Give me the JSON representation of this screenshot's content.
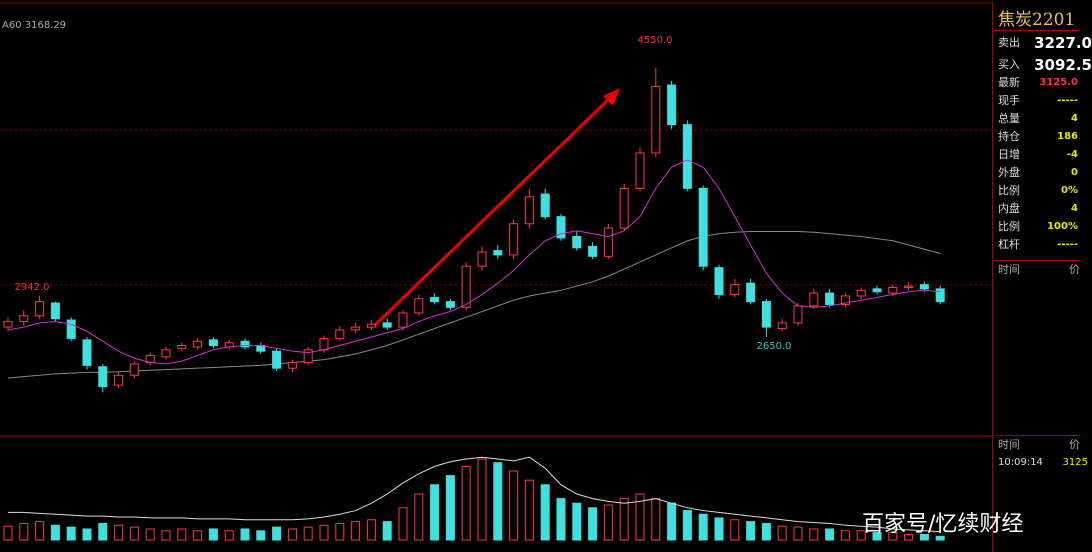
{
  "chart_data": {
    "type": "candlestick",
    "ma_label": "A60 3168.29",
    "annotations": [
      "4550.0",
      "2942.0",
      "2650.0"
    ],
    "ylim": [
      1958,
      4995
    ],
    "open": [
      2720,
      2760,
      2800,
      2890,
      2770,
      2630,
      2440,
      2310,
      2380,
      2470,
      2510,
      2570,
      2580,
      2630,
      2580,
      2620,
      2590,
      2550,
      2430,
      2470,
      2560,
      2640,
      2700,
      2720,
      2750,
      2720,
      2820,
      2930,
      2900,
      2860,
      3150,
      3260,
      3230,
      3450,
      3660,
      3500,
      3360,
      3290,
      3220,
      3420,
      3700,
      3950,
      4430,
      4150,
      3700,
      3140,
      2950,
      3030,
      2900,
      2710,
      2750,
      2870,
      2960,
      2880,
      2940,
      2990,
      2960,
      3000,
      3020,
      2990
    ],
    "high": [
      2790,
      2840,
      2942,
      2900,
      2790,
      2650,
      2460,
      2400,
      2480,
      2540,
      2580,
      2610,
      2640,
      2650,
      2630,
      2640,
      2610,
      2570,
      2490,
      2580,
      2660,
      2730,
      2750,
      2770,
      2780,
      2840,
      2950,
      2960,
      2920,
      3180,
      3290,
      3300,
      3480,
      3700,
      3700,
      3520,
      3400,
      3320,
      3450,
      3730,
      3990,
      4550,
      4460,
      4180,
      3720,
      3160,
      3060,
      3060,
      2920,
      2780,
      2890,
      2990,
      2990,
      2960,
      3000,
      3010,
      3020,
      3040,
      3040,
      3010
    ],
    "low": [
      2690,
      2730,
      2780,
      2760,
      2620,
      2420,
      2260,
      2290,
      2360,
      2450,
      2490,
      2550,
      2560,
      2570,
      2560,
      2560,
      2530,
      2410,
      2400,
      2450,
      2540,
      2620,
      2680,
      2700,
      2700,
      2700,
      2800,
      2880,
      2840,
      2840,
      3120,
      3200,
      3200,
      3420,
      3480,
      3330,
      3260,
      3200,
      3200,
      3400,
      3680,
      3920,
      4120,
      3680,
      3120,
      2920,
      2930,
      2880,
      2650,
      2690,
      2730,
      2850,
      2860,
      2860,
      2920,
      2950,
      2940,
      2980,
      2970,
      2880
    ],
    "close": [
      2760,
      2800,
      2900,
      2780,
      2640,
      2450,
      2300,
      2380,
      2460,
      2520,
      2560,
      2590,
      2620,
      2590,
      2610,
      2580,
      2550,
      2430,
      2470,
      2560,
      2640,
      2700,
      2720,
      2740,
      2720,
      2820,
      2920,
      2900,
      2860,
      3150,
      3250,
      3230,
      3450,
      3640,
      3500,
      3350,
      3280,
      3220,
      3420,
      3700,
      3950,
      4420,
      4150,
      3700,
      3150,
      2950,
      3020,
      2900,
      2720,
      2750,
      2870,
      2960,
      2880,
      2940,
      2980,
      2970,
      3000,
      3010,
      2990,
      2900
    ],
    "ma_long": [
      2360,
      2370,
      2380,
      2390,
      2395,
      2400,
      2400,
      2405,
      2410,
      2415,
      2420,
      2425,
      2430,
      2435,
      2440,
      2445,
      2450,
      2460,
      2470,
      2480,
      2490,
      2510,
      2530,
      2560,
      2590,
      2630,
      2670,
      2710,
      2750,
      2790,
      2830,
      2870,
      2910,
      2940,
      2960,
      2980,
      3010,
      3040,
      3080,
      3130,
      3180,
      3230,
      3280,
      3330,
      3360,
      3380,
      3390,
      3395,
      3395,
      3395,
      3395,
      3390,
      3380,
      3370,
      3360,
      3345,
      3330,
      3300,
      3270,
      3240
    ],
    "ma_short": [
      2700,
      2720,
      2750,
      2760,
      2740,
      2690,
      2620,
      2550,
      2500,
      2470,
      2460,
      2480,
      2520,
      2560,
      2580,
      2590,
      2590,
      2570,
      2550,
      2540,
      2560,
      2590,
      2620,
      2650,
      2680,
      2710,
      2760,
      2800,
      2830,
      2880,
      2950,
      3030,
      3120,
      3230,
      3330,
      3380,
      3400,
      3380,
      3360,
      3400,
      3500,
      3700,
      3850,
      3900,
      3850,
      3700,
      3500,
      3300,
      3100,
      2960,
      2870,
      2860,
      2870,
      2890,
      2910,
      2930,
      2950,
      2970,
      2980,
      2970
    ],
    "volume_ylim": [
      0,
      100
    ],
    "volume": [
      15,
      18,
      20,
      16,
      14,
      12,
      18,
      16,
      14,
      12,
      10,
      12,
      10,
      12,
      10,
      12,
      10,
      14,
      12,
      14,
      16,
      18,
      20,
      22,
      20,
      35,
      50,
      60,
      70,
      80,
      88,
      84,
      75,
      65,
      60,
      45,
      40,
      35,
      38,
      45,
      50,
      45,
      40,
      32,
      28,
      24,
      22,
      20,
      18,
      15,
      14,
      12,
      12,
      10,
      10,
      8,
      8,
      6,
      6,
      4
    ],
    "open_interest": [
      30,
      30,
      29,
      28,
      27,
      26,
      26,
      25,
      25,
      24,
      24,
      24,
      23,
      23,
      23,
      22,
      22,
      22,
      22,
      23,
      25,
      28,
      32,
      40,
      50,
      62,
      72,
      80,
      85,
      88,
      90,
      88,
      86,
      90,
      78,
      60,
      50,
      45,
      42,
      40,
      42,
      45,
      40,
      35,
      32,
      30,
      28,
      26,
      24,
      22,
      20,
      19,
      18,
      16,
      15,
      14,
      12,
      11,
      10,
      9
    ]
  },
  "panel": {
    "title": "焦炭2201",
    "rows": [
      [
        "卖出",
        "3227.0"
      ],
      [
        "买入",
        "3092.5"
      ],
      [
        "最新",
        "3125.0"
      ],
      [
        "现手",
        "-----"
      ],
      [
        "总量",
        "4"
      ],
      [
        "持仓",
        "186"
      ],
      [
        "日增",
        "-4"
      ],
      [
        "外盘",
        "0"
      ],
      [
        "比例",
        "0%"
      ],
      [
        "内盘",
        "4"
      ],
      [
        "比例",
        "100%"
      ],
      [
        "杠杆",
        "-----"
      ]
    ],
    "list_header": [
      "时间",
      "价"
    ],
    "tick_header": [
      "时间",
      "价"
    ],
    "tick_row": [
      "10:09:14",
      "3125"
    ]
  },
  "watermark": "百家号/忆续财经"
}
